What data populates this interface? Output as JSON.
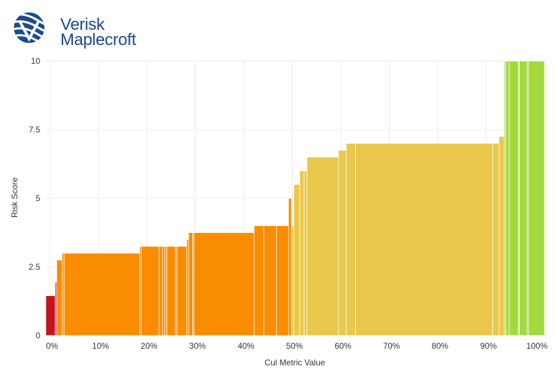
{
  "brand": {
    "line1": "Verisk",
    "line2": "Maplecroft",
    "color": "#1b4a8a"
  },
  "chart_data": {
    "type": "bar",
    "xlabel": "Cul Metric Value",
    "ylabel": "Risk Score",
    "xlim": [
      0,
      1.0
    ],
    "ylim": [
      0,
      10
    ],
    "x_ticks": [
      "0%",
      "10%",
      "20%",
      "30%",
      "40%",
      "50%",
      "60%",
      "70%",
      "80%",
      "90%",
      "100%"
    ],
    "y_ticks": [
      "0",
      "2.5",
      "5",
      "7.5",
      "10"
    ],
    "grid": true,
    "colors": {
      "red": "#c4141c",
      "orange": "#f98c00",
      "yellow": "#e9c84b",
      "green": "#a3d93c"
    },
    "bars": [
      {
        "x0": -0.01,
        "x1": 0.011,
        "value": 1.45,
        "color": "red"
      },
      {
        "x0": 0.011,
        "x1": 0.014,
        "value": 1.95,
        "color": "red"
      },
      {
        "x0": 0.014,
        "x1": 0.025,
        "value": 2.75,
        "color": "orange"
      },
      {
        "x0": 0.025,
        "x1": 0.029,
        "value": 3.0,
        "color": "orange"
      },
      {
        "x0": 0.029,
        "x1": 0.185,
        "value": 3.0,
        "color": "orange"
      },
      {
        "x0": 0.185,
        "x1": 0.188,
        "value": 3.25,
        "color": "orange"
      },
      {
        "x0": 0.188,
        "x1": 0.225,
        "value": 3.25,
        "color": "orange"
      },
      {
        "x0": 0.225,
        "x1": 0.232,
        "value": 3.25,
        "color": "orange"
      },
      {
        "x0": 0.232,
        "x1": 0.237,
        "value": 3.25,
        "color": "orange"
      },
      {
        "x0": 0.237,
        "x1": 0.241,
        "value": 3.25,
        "color": "orange"
      },
      {
        "x0": 0.241,
        "x1": 0.259,
        "value": 3.25,
        "color": "orange"
      },
      {
        "x0": 0.259,
        "x1": 0.262,
        "value": 3.25,
        "color": "orange"
      },
      {
        "x0": 0.262,
        "x1": 0.282,
        "value": 3.25,
        "color": "orange"
      },
      {
        "x0": 0.282,
        "x1": 0.286,
        "value": 3.5,
        "color": "orange"
      },
      {
        "x0": 0.286,
        "x1": 0.294,
        "value": 3.75,
        "color": "orange"
      },
      {
        "x0": 0.294,
        "x1": 0.297,
        "value": 3.75,
        "color": "orange"
      },
      {
        "x0": 0.297,
        "x1": 0.421,
        "value": 3.75,
        "color": "orange"
      },
      {
        "x0": 0.421,
        "x1": 0.441,
        "value": 4.0,
        "color": "orange"
      },
      {
        "x0": 0.441,
        "x1": 0.467,
        "value": 4.0,
        "color": "orange"
      },
      {
        "x0": 0.467,
        "x1": 0.492,
        "value": 4.0,
        "color": "orange"
      },
      {
        "x0": 0.492,
        "x1": 0.498,
        "value": 5.0,
        "color": "orange"
      },
      {
        "x0": 0.498,
        "x1": 0.503,
        "value": 4.0,
        "color": "yellow"
      },
      {
        "x0": 0.503,
        "x1": 0.515,
        "value": 5.5,
        "color": "yellow"
      },
      {
        "x0": 0.515,
        "x1": 0.524,
        "value": 6.0,
        "color": "yellow"
      },
      {
        "x0": 0.524,
        "x1": 0.53,
        "value": 6.0,
        "color": "yellow"
      },
      {
        "x0": 0.53,
        "x1": 0.595,
        "value": 6.5,
        "color": "yellow"
      },
      {
        "x0": 0.595,
        "x1": 0.611,
        "value": 6.75,
        "color": "yellow"
      },
      {
        "x0": 0.611,
        "x1": 0.63,
        "value": 7.0,
        "color": "yellow"
      },
      {
        "x0": 0.63,
        "x1": 0.913,
        "value": 7.0,
        "color": "yellow"
      },
      {
        "x0": 0.913,
        "x1": 0.926,
        "value": 7.0,
        "color": "yellow"
      },
      {
        "x0": 0.926,
        "x1": 0.937,
        "value": 7.25,
        "color": "yellow"
      },
      {
        "x0": 0.937,
        "x1": 0.94,
        "value": 10.0,
        "color": "green"
      },
      {
        "x0": 0.94,
        "x1": 0.947,
        "value": 10.0,
        "color": "green"
      },
      {
        "x0": 0.947,
        "x1": 0.966,
        "value": 10.0,
        "color": "green"
      },
      {
        "x0": 0.966,
        "x1": 0.968,
        "value": 10.0,
        "color": "green"
      },
      {
        "x0": 0.968,
        "x1": 0.984,
        "value": 10.0,
        "color": "green"
      },
      {
        "x0": 0.984,
        "x1": 0.987,
        "value": 10.0,
        "color": "green"
      },
      {
        "x0": 0.987,
        "x1": 1.02,
        "value": 10.0,
        "color": "green"
      }
    ]
  }
}
